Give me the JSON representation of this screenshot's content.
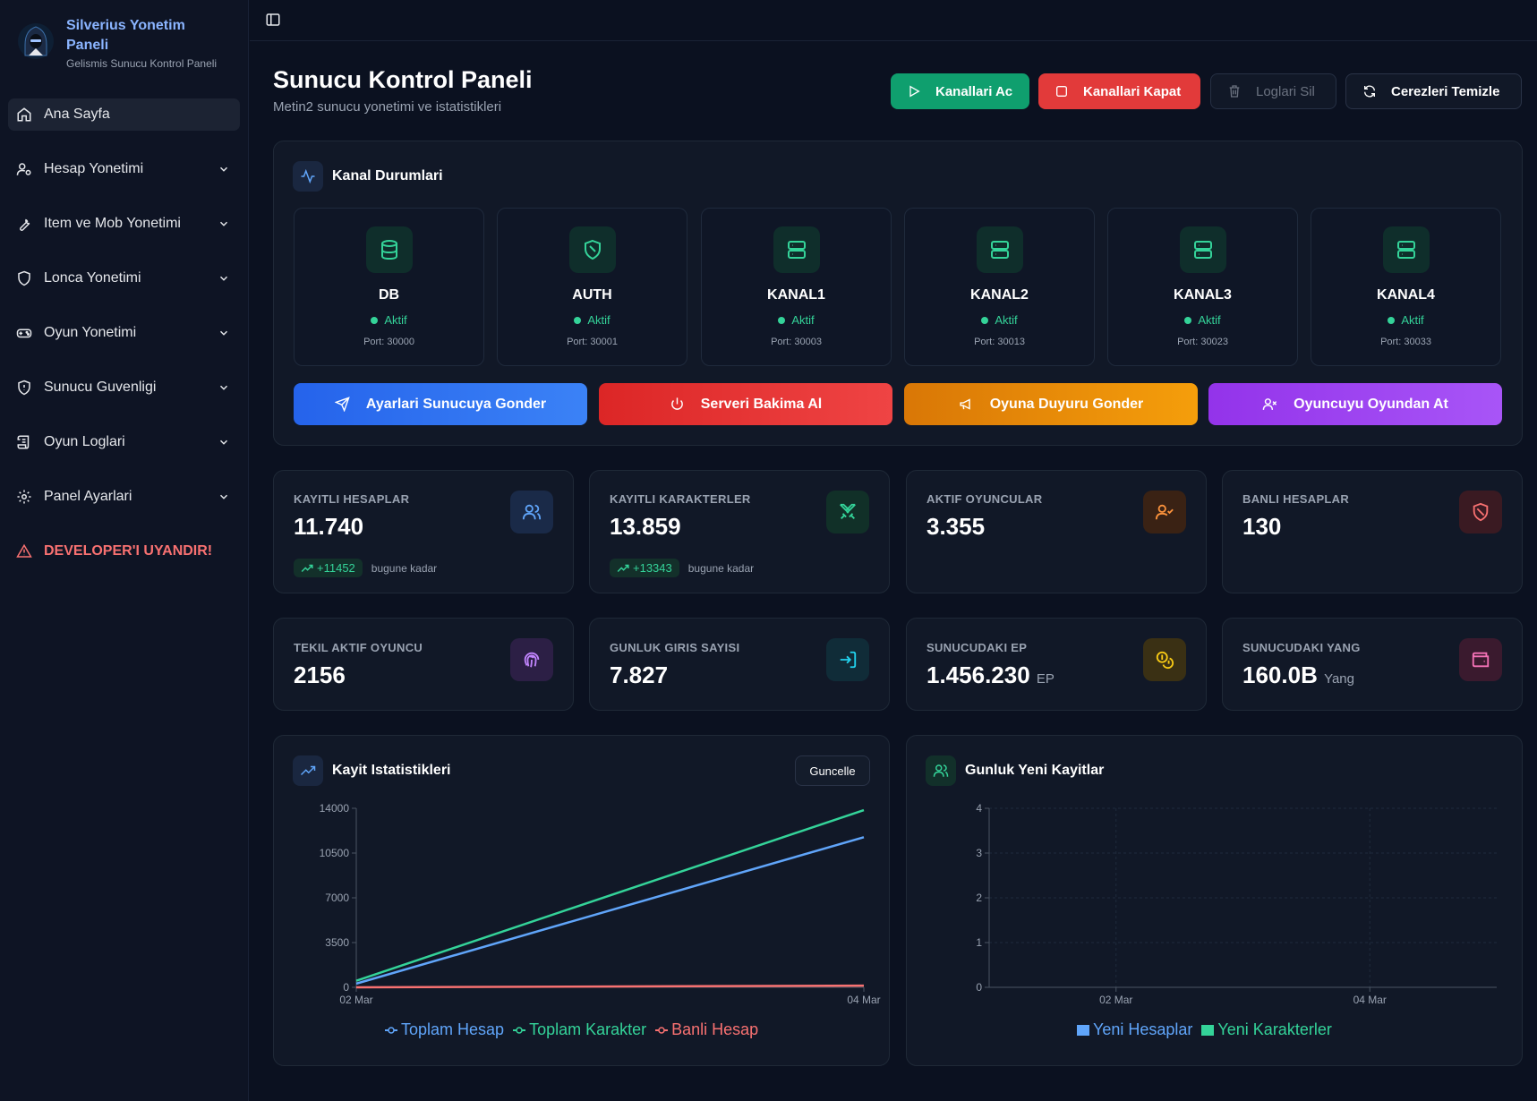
{
  "brand": {
    "title_line1": "Silverius Yonetim",
    "title_line2": "Paneli",
    "subtitle": "Gelismis Sunucu Kontrol Paneli"
  },
  "sidebar": {
    "items": [
      {
        "label": "Ana Sayfa",
        "icon": "home-icon"
      },
      {
        "label": "Hesap Yonetimi",
        "icon": "user-gear-icon"
      },
      {
        "label": "Item ve Mob Yonetimi",
        "icon": "wrench-icon"
      },
      {
        "label": "Lonca Yonetimi",
        "icon": "shield-icon"
      },
      {
        "label": "Oyun Yonetimi",
        "icon": "gamepad-icon"
      },
      {
        "label": "Sunucu Guvenligi",
        "icon": "shield-alert-icon"
      },
      {
        "label": "Oyun Loglari",
        "icon": "scroll-icon"
      },
      {
        "label": "Panel Ayarlari",
        "icon": "gear-icon"
      }
    ],
    "alert": "DEVELOPER'I UYANDIR!"
  },
  "header": {
    "title": "Sunucu Kontrol Paneli",
    "subtitle": "Metin2 sunucu yonetimi ve istatistikleri",
    "buttons": {
      "open": "Kanallari Ac",
      "close": "Kanallari Kapat",
      "delete_logs": "Loglari Sil",
      "clear_cookies": "Cerezleri Temizle"
    }
  },
  "channels": {
    "title": "Kanal Durumlari",
    "items": [
      {
        "name": "DB",
        "status": "Aktif",
        "port": "Port: 30000",
        "icon": "database-icon"
      },
      {
        "name": "AUTH",
        "status": "Aktif",
        "port": "Port: 30001",
        "icon": "shield-icon"
      },
      {
        "name": "KANAL1",
        "status": "Aktif",
        "port": "Port: 30003",
        "icon": "server-icon"
      },
      {
        "name": "KANAL2",
        "status": "Aktif",
        "port": "Port: 30013",
        "icon": "server-icon"
      },
      {
        "name": "KANAL3",
        "status": "Aktif",
        "port": "Port: 30023",
        "icon": "server-icon"
      },
      {
        "name": "KANAL4",
        "status": "Aktif",
        "port": "Port: 30033",
        "icon": "server-icon"
      }
    ],
    "actions": {
      "send_settings": "Ayarlari Sunucuya Gonder",
      "maintenance": "Serveri Bakima Al",
      "announce": "Oyuna Duyuru Gonder",
      "kick": "Oyuncuyu Oyundan At"
    }
  },
  "stats": {
    "accounts": {
      "label": "KAYITLI HESAPLAR",
      "value": "11.740",
      "trend": "+11452",
      "trend_note": "bugune kadar"
    },
    "characters": {
      "label": "KAYITLI KARAKTERLER",
      "value": "13.859",
      "trend": "+13343",
      "trend_note": "bugune kadar"
    },
    "active": {
      "label": "AKTIF OYUNCULAR",
      "value": "3.355"
    },
    "banned": {
      "label": "BANLI HESAPLAR",
      "value": "130"
    },
    "unique": {
      "label": "TEKIL AKTIF OYUNCU",
      "value": "2156"
    },
    "logins": {
      "label": "GUNLUK GIRIS SAYISI",
      "value": "7.827"
    },
    "ep": {
      "label": "SUNUCUDAKI EP",
      "value": "1.456.230",
      "unit": "EP"
    },
    "yang": {
      "label": "SUNUCUDAKI YANG",
      "value": "160.0B",
      "unit": "Yang"
    }
  },
  "charts_meta": {
    "left_title": "Kayit Istatistikleri",
    "refresh": "Guncelle",
    "right_title": "Gunluk Yeni Kayitlar"
  },
  "colors": {
    "accent_blue": "#60a5fa",
    "accent_green": "#34d399",
    "accent_red": "#f87171"
  },
  "chart_data": [
    {
      "type": "line",
      "title": "Kayit Istatistikleri",
      "x": [
        "02 Mar",
        "04 Mar"
      ],
      "ylim": [
        0,
        14000
      ],
      "yticks": [
        0,
        3500,
        7000,
        10500,
        14000
      ],
      "series": [
        {
          "name": "Toplam Hesap",
          "values": [
            288,
            11740
          ],
          "color": "#60a5fa"
        },
        {
          "name": "Toplam Karakter",
          "values": [
            516,
            13859
          ],
          "color": "#34d399"
        },
        {
          "name": "Banli Hesap",
          "values": [
            0,
            130
          ],
          "color": "#f87171"
        }
      ],
      "legend": "bottom",
      "grid": false
    },
    {
      "type": "bar",
      "title": "Gunluk Yeni Kayitlar",
      "categories": [
        "02 Mar",
        "04 Mar"
      ],
      "ylim": [
        0,
        4
      ],
      "yticks": [
        0,
        1,
        2,
        3,
        4
      ],
      "series": [
        {
          "name": "Yeni Hesaplar",
          "values": [
            0,
            0
          ],
          "color": "#60a5fa"
        },
        {
          "name": "Yeni Karakterler",
          "values": [
            0,
            0
          ],
          "color": "#34d399"
        }
      ],
      "legend": "bottom",
      "grid": true
    }
  ]
}
